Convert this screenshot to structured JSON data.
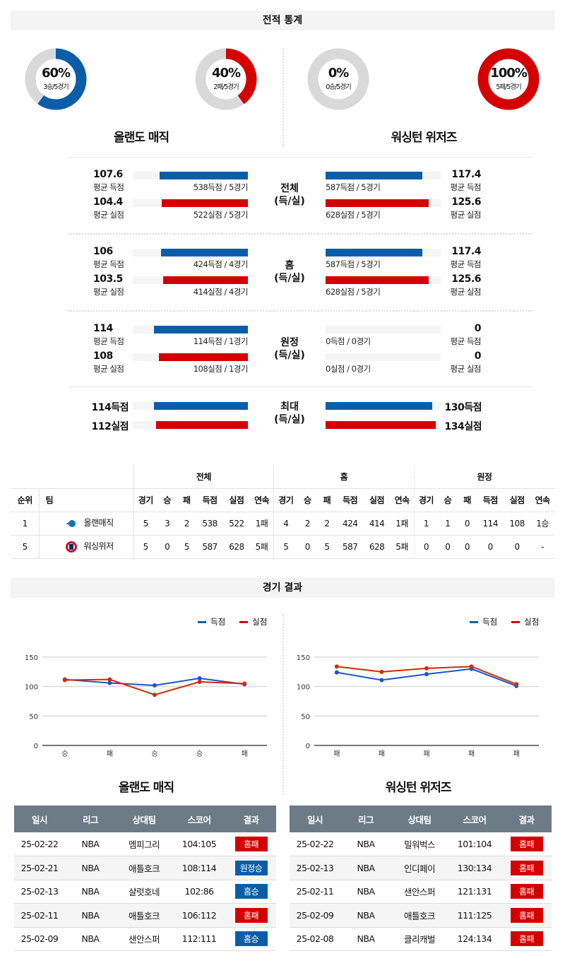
{
  "colors": {
    "blue": "#0a5ea8",
    "red": "#d40000",
    "gray": "#d9d9d9",
    "header": "#6d7b87"
  },
  "stats_section": {
    "title": "전적 통계"
  },
  "teams": [
    {
      "name": "올랜도 매직",
      "short": "올랜매직",
      "donuts": [
        {
          "pct": "60%",
          "sub": "3승/5경기",
          "value": 60,
          "color": "blue"
        },
        {
          "pct": "40%",
          "sub": "2패/5경기",
          "value": 40,
          "color": "red"
        }
      ]
    },
    {
      "name": "워싱턴 위저즈",
      "short": "워싱위저",
      "donuts": [
        {
          "pct": "0%",
          "sub": "0승/5경기",
          "value": 0,
          "color": "blue"
        },
        {
          "pct": "100%",
          "sub": "5패/5경기",
          "value": 100,
          "color": "red"
        }
      ]
    }
  ],
  "stat_blocks": [
    {
      "label1": "전체",
      "label2": "(득/실)",
      "left": [
        {
          "value": "107.6",
          "avg": 107.6,
          "caption": "평균 득점",
          "detail": "538득점 / 5경기"
        },
        {
          "value": "104.4",
          "avg": 104.4,
          "caption": "평균 실점",
          "detail": "522실점 / 5경기"
        }
      ],
      "right": [
        {
          "value": "117.4",
          "avg": 117.4,
          "caption": "평균 득점",
          "detail": "587득점 / 5경기"
        },
        {
          "value": "125.6",
          "avg": 125.6,
          "caption": "평균 실점",
          "detail": "628실점 / 5경기"
        }
      ]
    },
    {
      "label1": "홈",
      "label2": "(득/실)",
      "left": [
        {
          "value": "106",
          "avg": 106,
          "caption": "평균 득점",
          "detail": "424득점 / 4경기"
        },
        {
          "value": "103.5",
          "avg": 103.5,
          "caption": "평균 실점",
          "detail": "414실점 / 4경기"
        }
      ],
      "right": [
        {
          "value": "117.4",
          "avg": 117.4,
          "caption": "평균 득점",
          "detail": "587득점 / 5경기"
        },
        {
          "value": "125.6",
          "avg": 125.6,
          "caption": "평균 실점",
          "detail": "628실점 / 5경기"
        }
      ]
    },
    {
      "label1": "원정",
      "label2": "(득/실)",
      "left": [
        {
          "value": "114",
          "avg": 114,
          "caption": "평균 득점",
          "detail": "114득점 / 1경기"
        },
        {
          "value": "108",
          "avg": 108,
          "caption": "평균 실점",
          "detail": "108실점 / 1경기"
        }
      ],
      "right": [
        {
          "value": "0",
          "avg": 0,
          "caption": "평균 득점",
          "detail": "0득점 / 0경기"
        },
        {
          "value": "0",
          "avg": 0,
          "caption": "평균 실점",
          "detail": "0실점 / 0경기"
        }
      ]
    }
  ],
  "max_block": {
    "label1": "최대",
    "label2": "(득/실)",
    "left": [
      {
        "value": "114득점",
        "avg": 114
      },
      {
        "value": "112실점",
        "avg": 112
      }
    ],
    "right": [
      {
        "value": "130득점",
        "avg": 130
      },
      {
        "value": "134실점",
        "avg": 134
      }
    ]
  },
  "standings": {
    "group_headers": [
      "전체",
      "홈",
      "원정"
    ],
    "columns": [
      "순위",
      "팀",
      "경기",
      "승",
      "패",
      "득점",
      "실점",
      "연속",
      "경기",
      "승",
      "패",
      "득점",
      "실점",
      "연속",
      "경기",
      "승",
      "패",
      "득점",
      "실점",
      "연속"
    ],
    "rows": [
      [
        "1",
        "올랜매직",
        "5",
        "3",
        "2",
        "538",
        "522",
        "1패",
        "4",
        "2",
        "2",
        "424",
        "414",
        "1패",
        "1",
        "1",
        "0",
        "114",
        "108",
        "1승"
      ],
      [
        "5",
        "워싱위저",
        "5",
        "0",
        "5",
        "587",
        "628",
        "5패",
        "5",
        "0",
        "5",
        "587",
        "628",
        "5패",
        "0",
        "0",
        "0",
        "0",
        "0",
        "-"
      ]
    ]
  },
  "results_section": {
    "title": "경기 결과"
  },
  "chart_data": [
    {
      "type": "line",
      "categories": [
        "승",
        "패",
        "승",
        "승",
        "패"
      ],
      "ylim": [
        0,
        150
      ],
      "yticks": [
        0,
        50,
        100,
        150
      ],
      "grid": true,
      "legend": "top-right",
      "series": [
        {
          "name": "득점",
          "color": "#1a56c9",
          "values": [
            112,
            106,
            102,
            114,
            104
          ]
        },
        {
          "name": "실점",
          "color": "#d42a00",
          "values": [
            111,
            112,
            86,
            108,
            105
          ]
        }
      ]
    },
    {
      "type": "line",
      "categories": [
        "패",
        "패",
        "패",
        "패",
        "패"
      ],
      "ylim": [
        0,
        150
      ],
      "yticks": [
        0,
        50,
        100,
        150
      ],
      "grid": true,
      "legend": "top-right",
      "series": [
        {
          "name": "득점",
          "color": "#1a56c9",
          "values": [
            124,
            111,
            121,
            130,
            101
          ]
        },
        {
          "name": "실점",
          "color": "#d42a00",
          "values": [
            134,
            125,
            131,
            134,
            104
          ]
        }
      ]
    }
  ],
  "results": {
    "columns": [
      "일시",
      "리그",
      "상대팀",
      "스코어",
      "결과"
    ],
    "tables": [
      [
        [
          "25-02-22",
          "NBA",
          "멤피그리",
          "104:105",
          "홈패",
          "red"
        ],
        [
          "25-02-21",
          "NBA",
          "애틀호크",
          "108:114",
          "원정승",
          "blue"
        ],
        [
          "25-02-13",
          "NBA",
          "샬럿호네",
          "102:86",
          "홈승",
          "blue"
        ],
        [
          "25-02-11",
          "NBA",
          "애틀호크",
          "106:112",
          "홈패",
          "red"
        ],
        [
          "25-02-09",
          "NBA",
          "샌안스퍼",
          "112:111",
          "홈승",
          "blue"
        ]
      ],
      [
        [
          "25-02-22",
          "NBA",
          "밀워벅스",
          "101:104",
          "홈패",
          "red"
        ],
        [
          "25-02-13",
          "NBA",
          "인디페이",
          "130:134",
          "홈패",
          "red"
        ],
        [
          "25-02-11",
          "NBA",
          "샌안스퍼",
          "121:131",
          "홈패",
          "red"
        ],
        [
          "25-02-09",
          "NBA",
          "애틀호크",
          "111:125",
          "홈패",
          "red"
        ],
        [
          "25-02-08",
          "NBA",
          "클리캐벌",
          "124:134",
          "홈패",
          "red"
        ]
      ]
    ]
  }
}
